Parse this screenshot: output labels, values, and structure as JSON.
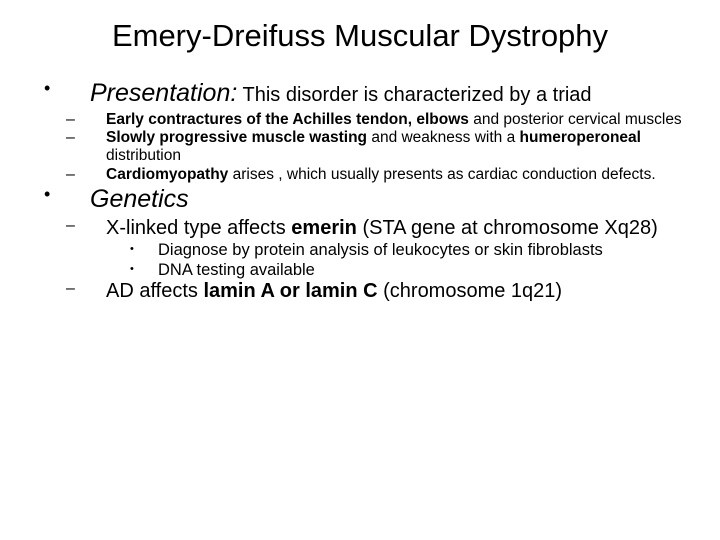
{
  "title": "Emery-Dreifuss Muscular Dystrophy",
  "presentation": {
    "heading": "Presentation:",
    "tail": " This disorder is characterized by a triad",
    "items": [
      {
        "bold": "Early contractures of the Achilles tendon, elbows",
        "rest": " and posterior cervical muscles"
      },
      {
        "bold": "Slowly progressive muscle wasting",
        "mid": " and weakness with a ",
        "bold2": "humeroperoneal",
        "rest": " distribution"
      },
      {
        "bold": "Cardiomyopathy",
        "rest": " arises , which usually presents as cardiac conduction defects."
      }
    ]
  },
  "genetics": {
    "heading": "Genetics",
    "xlinked": {
      "lead": "X-linked type affects ",
      "bold": "emerin",
      "rest": " (STA gene at chromosome Xq28)",
      "dots": [
        "Diagnose by protein analysis of leukocytes or skin fibroblasts",
        "DNA testing available"
      ]
    },
    "ad": {
      "lead": "AD affects ",
      "bold": "lamin A or lamin C",
      "rest": " (chromosome 1q21)"
    }
  },
  "colors": {
    "text": "#000000",
    "background": "#ffffff"
  }
}
